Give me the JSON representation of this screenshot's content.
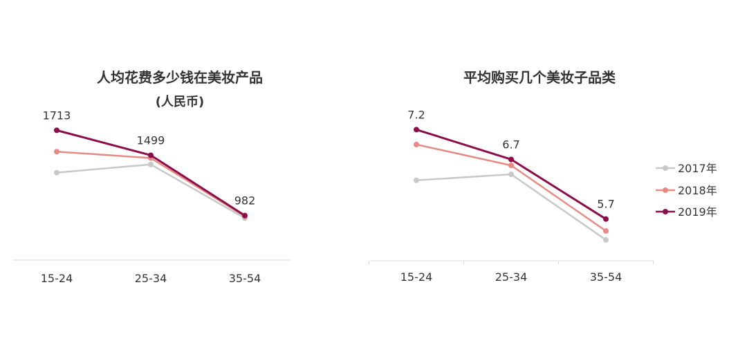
{
  "chart_data": [
    {
      "type": "line",
      "title": "人均花费多少钱在美妆产品",
      "subtitle": "(人民币)",
      "categories": [
        "15-24",
        "25-34",
        "35-54"
      ],
      "series": [
        {
          "name": "2017年",
          "color": "#c8c8c8",
          "values": [
            1350,
            1420,
            960
          ]
        },
        {
          "name": "2018年",
          "color": "#e88a84",
          "values": [
            1530,
            1475,
            975
          ]
        },
        {
          "name": "2019年",
          "color": "#8b0d4a",
          "values": [
            1713,
            1499,
            982
          ]
        }
      ],
      "data_labels": {
        "series": "2019年",
        "labels": [
          "1713",
          "1499",
          "982"
        ]
      },
      "ylim": [
        600,
        2000
      ],
      "grid": false
    },
    {
      "type": "line",
      "title": "平均购买几个美妆子品类",
      "categories": [
        "15-24",
        "25-34",
        "35-54"
      ],
      "series": [
        {
          "name": "2017年",
          "color": "#c8c8c8",
          "values": [
            6.35,
            6.45,
            5.35
          ]
        },
        {
          "name": "2018年",
          "color": "#e88a84",
          "values": [
            6.95,
            6.6,
            5.5
          ]
        },
        {
          "name": "2019年",
          "color": "#8b0d4a",
          "values": [
            7.2,
            6.7,
            5.7
          ]
        }
      ],
      "data_labels": {
        "series": "2019年",
        "labels": [
          "7.2",
          "6.7",
          "5.7"
        ]
      },
      "ylim": [
        5.0,
        7.75
      ],
      "legend": "right",
      "grid": false
    }
  ]
}
